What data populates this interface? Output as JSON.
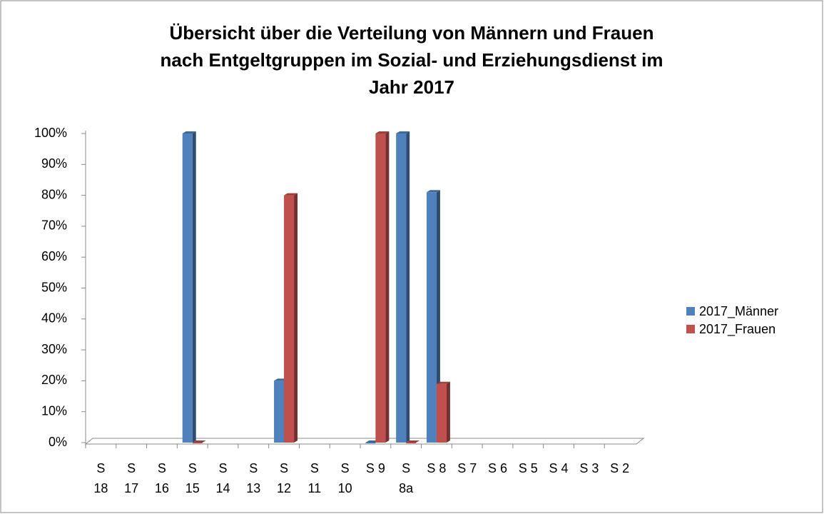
{
  "chart_data": {
    "type": "bar",
    "title": [
      "Übersicht über die Verteilung von Männern und Frauen",
      "nach Entgeltgruppen im Sozial- und Erziehungsdienst im",
      "Jahr  2017"
    ],
    "categories": [
      "S 18",
      "S 17",
      "S 16",
      "S 15",
      "S 14",
      "S 13",
      "S 12",
      "S 11",
      "S 10",
      "S 9",
      "S 8a",
      "S 8",
      "S 7",
      "S 6",
      "S 5",
      "S 4",
      "S 3",
      "S 2"
    ],
    "series": [
      {
        "name": "2017_Männer",
        "color": "#4f81bd",
        "values": [
          null,
          null,
          null,
          100,
          null,
          null,
          20,
          null,
          null,
          0,
          100,
          81,
          null,
          null,
          null,
          null,
          null,
          null
        ]
      },
      {
        "name": "2017_Frauen",
        "color": "#c0504d",
        "values": [
          null,
          null,
          null,
          0,
          null,
          null,
          80,
          null,
          null,
          100,
          0,
          19,
          null,
          null,
          null,
          null,
          null,
          null
        ]
      }
    ],
    "ylim": [
      0,
      100
    ],
    "yticks": [
      {
        "value": 0,
        "label": "0%"
      },
      {
        "value": 10,
        "label": "10%"
      },
      {
        "value": 20,
        "label": "20%"
      },
      {
        "value": 30,
        "label": "30%"
      },
      {
        "value": 40,
        "label": "40%"
      },
      {
        "value": 50,
        "label": "50%"
      },
      {
        "value": 60,
        "label": "60%"
      },
      {
        "value": 70,
        "label": "70%"
      },
      {
        "value": 80,
        "label": "80%"
      },
      {
        "value": 90,
        "label": "90%"
      },
      {
        "value": 100,
        "label": "100%"
      }
    ],
    "legend": "right"
  }
}
